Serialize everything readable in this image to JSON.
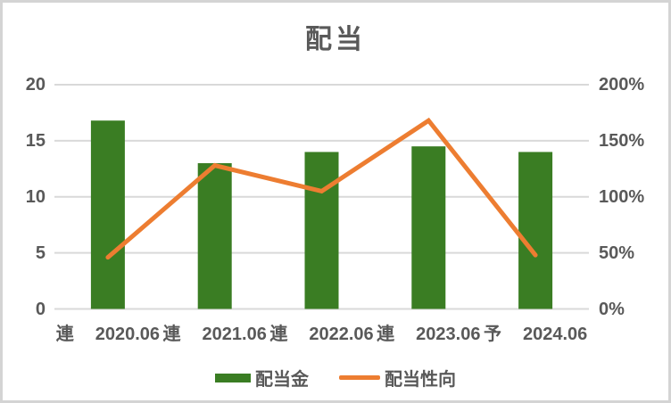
{
  "chart_data": {
    "type": "combo_bar_line",
    "title": "配当",
    "categories": [
      {
        "prefix": "連",
        "label": "2020.06"
      },
      {
        "prefix": "連",
        "label": "2021.06"
      },
      {
        "prefix": "連",
        "label": "2022.06"
      },
      {
        "prefix": "連",
        "label": "2023.06"
      },
      {
        "prefix": "予",
        "label": "2024.06"
      }
    ],
    "series": [
      {
        "name": "配当金",
        "type": "bar",
        "axis": "left",
        "color": "#3A7D23",
        "values": [
          16.8,
          13,
          14,
          14.5,
          14
        ]
      },
      {
        "name": "配当性向",
        "type": "line",
        "axis": "right",
        "color": "#ED7D31",
        "values": [
          46,
          128,
          105,
          168,
          48
        ]
      }
    ],
    "left_axis": {
      "min": 0,
      "max": 20,
      "ticks": [
        "0",
        "5",
        "10",
        "15",
        "20"
      ]
    },
    "right_axis": {
      "min": 0,
      "max": 200,
      "ticks": [
        "0%",
        "50%",
        "100%",
        "150%",
        "200%"
      ]
    },
    "grid": true,
    "legend_position": "bottom"
  },
  "style": {
    "text_color": "#595959",
    "grid_color": "#d9d9d9",
    "border_color": "#d4d4d4",
    "background": "#ffffff"
  }
}
